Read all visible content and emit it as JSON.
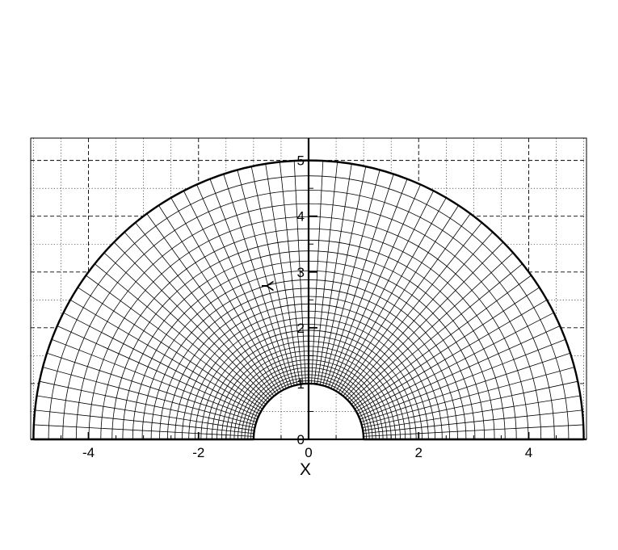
{
  "chart_data": {
    "type": "scatter",
    "title": "",
    "xlabel": "X",
    "ylabel": "Y",
    "xlim": [
      -5.05,
      5.05
    ],
    "ylim": [
      0,
      5.4
    ],
    "x_ticks": [
      -4,
      -2,
      0,
      2,
      4
    ],
    "x_tick_labels": [
      "-4",
      "-2",
      "0",
      "2",
      "4"
    ],
    "y_ticks": [
      0,
      1,
      2,
      3,
      4,
      5
    ],
    "y_tick_labels": [
      "0",
      "1",
      "2",
      "3",
      "4",
      "5"
    ],
    "grid": true,
    "grid_major_style": "dashed",
    "grid_minor_style": "dotted",
    "grid_minor_step": 0.5,
    "mesh": {
      "shape": "half-annulus",
      "inner_radius": 1,
      "outer_radius": 5,
      "theta_range_deg": [
        0,
        180
      ],
      "radial_lines": 61,
      "circumferential_lines": 31,
      "radial_stretch": 1.06
    },
    "colors": {
      "line": "#000000",
      "background": "#ffffff"
    }
  }
}
